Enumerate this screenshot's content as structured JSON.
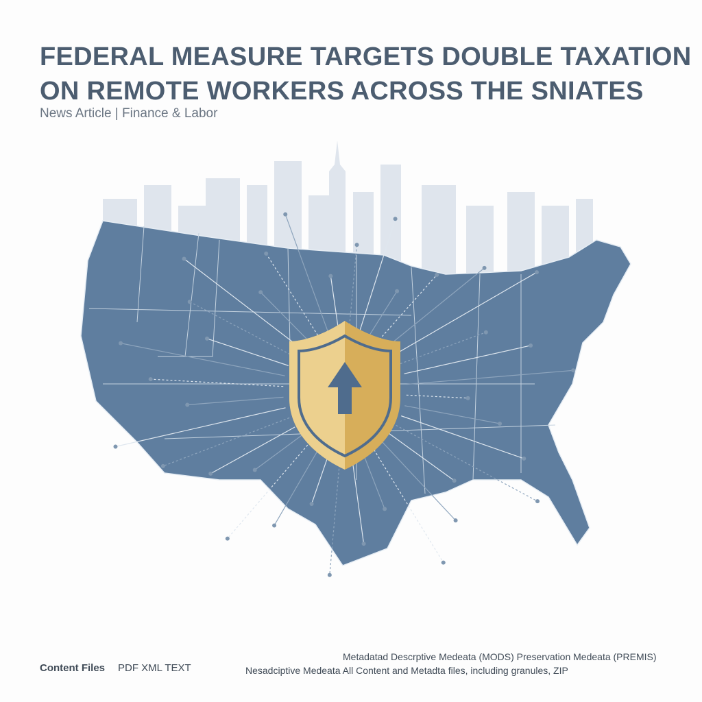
{
  "header": {
    "title_lines": [
      "FEDERAL MEASURE TARGETS DOUBLE TAXATION",
      "ON REMOTE WORKERS ACROSS THE SNIATES"
    ],
    "subtitle": "News Article | Finance & Labor"
  },
  "footer": {
    "content_label": "Content Files",
    "formats": "PDF XML TEXT",
    "metadata_line_1": "Metadatad Descrptive Medeata (MODS) Preservation Medeata (PREMIS)",
    "metadata_line_2": "Nesadciptive Medeata All Content and Metadta files, including granules, ZIP"
  }
}
